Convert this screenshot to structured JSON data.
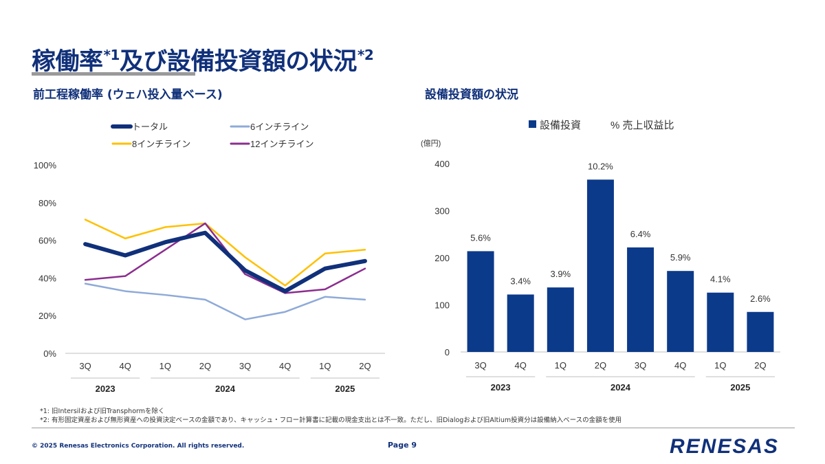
{
  "page": {
    "title": "稼働率",
    "title_mid": "及び設備投資額の状況",
    "title_sup1": "*1",
    "title_sup2": "*2",
    "footnote1": "*1: 旧Intersilおよび旧Transphormを除く",
    "footnote2": "*2: 有形固定資産および無形資産への投資決定ベースの金額であり、キャッシュ・フロー計算書に記載の現金支出とは不一致。ただし、旧Dialogおよび旧Altium投資分は設備納入ベースの金額を使用",
    "copyright": "© 2025 Renesas Electronics Corporation. All rights reserved.",
    "page_number": "Page 9",
    "logo_text": "RENESAS",
    "colors": {
      "brand": "#10307a",
      "rule": "#9a9a9a"
    }
  },
  "chart_data": [
    {
      "type": "line",
      "title": "前工程稼働率 (ウェハ投入量ベース)",
      "categories": [
        "3Q",
        "4Q",
        "1Q",
        "2Q",
        "3Q",
        "4Q",
        "1Q",
        "2Q"
      ],
      "year_groups": [
        {
          "label": "2023",
          "span": 2
        },
        {
          "label": "2024",
          "span": 4
        },
        {
          "label": "2025",
          "span": 2
        }
      ],
      "ylim": [
        0,
        100
      ],
      "yticks": [
        0,
        20,
        40,
        60,
        80,
        100
      ],
      "ytick_labels": [
        "0%",
        "20%",
        "40%",
        "60%",
        "80%",
        "100%"
      ],
      "legend_position": "top",
      "series": [
        {
          "name": "トータル",
          "color": "#10307a",
          "width": 6,
          "values": [
            58,
            52,
            59,
            64,
            44,
            33,
            45,
            49
          ]
        },
        {
          "name": "6インチライン",
          "color": "#8eaad8",
          "width": 2.5,
          "values": [
            37,
            33,
            31,
            28.5,
            18,
            22,
            30,
            28.5
          ]
        },
        {
          "name": "8インチライン",
          "color": "#ffc000",
          "width": 2.5,
          "values": [
            71,
            61,
            67,
            69,
            51,
            36,
            53,
            55
          ]
        },
        {
          "name": "12インチライン",
          "color": "#8b2d8f",
          "width": 2.5,
          "values": [
            39,
            41,
            55,
            69,
            42,
            32,
            34,
            45
          ]
        }
      ]
    },
    {
      "type": "bar",
      "title": "設備投資額の状況",
      "unit_label": "(億円)",
      "categories": [
        "3Q",
        "4Q",
        "1Q",
        "2Q",
        "3Q",
        "4Q",
        "1Q",
        "2Q"
      ],
      "year_groups": [
        {
          "label": "2023",
          "span": 2
        },
        {
          "label": "2024",
          "span": 4
        },
        {
          "label": "2025",
          "span": 2
        }
      ],
      "ylim": [
        0,
        400
      ],
      "yticks": [
        0,
        100,
        200,
        300,
        400
      ],
      "ytick_labels": [
        "0",
        "100",
        "200",
        "300",
        "400"
      ],
      "series": [
        {
          "name": "設備投資",
          "color": "#0c3a8a",
          "values": [
            214,
            122,
            137,
            366,
            222,
            172,
            126,
            85
          ]
        }
      ],
      "ratio_legend": "% 売上収益比",
      "data_labels": [
        "5.6%",
        "3.4%",
        "3.9%",
        "10.2%",
        "6.4%",
        "5.9%",
        "4.1%",
        "2.6%"
      ]
    }
  ]
}
